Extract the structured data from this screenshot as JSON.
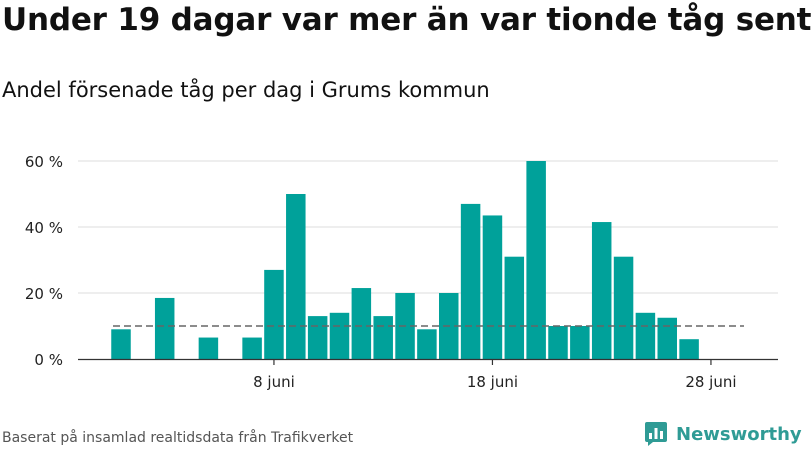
{
  "header": {
    "title": "Under 19 dagar var mer än var tionde tåg sent",
    "subtitle": "Andel försenade tåg per dag i Grums kommun"
  },
  "footer": {
    "source": "Baserat på insamlad realtidsdata från Trafikverket",
    "brand": "Newsworthy"
  },
  "colors": {
    "bar": "#00a19a",
    "grid": "#dddddd",
    "reference_line": "#666666",
    "brand": "#2f9b95"
  },
  "chart_data": {
    "type": "bar",
    "title": "Under 19 dagar var mer än var tionde tåg sent",
    "subtitle": "Andel försenade tåg per dag i Grums kommun",
    "xlabel": "",
    "ylabel": "",
    "x_unit": "day of June",
    "x": [
      1,
      2,
      3,
      4,
      5,
      6,
      7,
      8,
      9,
      10,
      11,
      12,
      13,
      14,
      15,
      16,
      17,
      18,
      19,
      20,
      21,
      22,
      23,
      24,
      25,
      26,
      27,
      28,
      29
    ],
    "values": [
      9,
      0,
      18.5,
      0,
      6.5,
      0,
      6.5,
      27,
      50,
      13,
      14,
      21.5,
      13,
      20,
      9,
      20,
      47,
      43.5,
      31,
      60,
      10,
      10,
      41.5,
      31,
      14,
      12.5,
      6,
      0,
      0
    ],
    "ylim": [
      0,
      60
    ],
    "yticks": [
      0,
      20,
      40,
      60
    ],
    "ytick_labels": [
      "0 %",
      "20 %",
      "40 %",
      "60 %"
    ],
    "xticks": [
      8,
      18,
      28
    ],
    "xtick_labels": [
      "8 juni",
      "18 juni",
      "28 juni"
    ],
    "reference_line": {
      "value": 10,
      "style": "dashed"
    },
    "grid": true,
    "legend": "none"
  }
}
